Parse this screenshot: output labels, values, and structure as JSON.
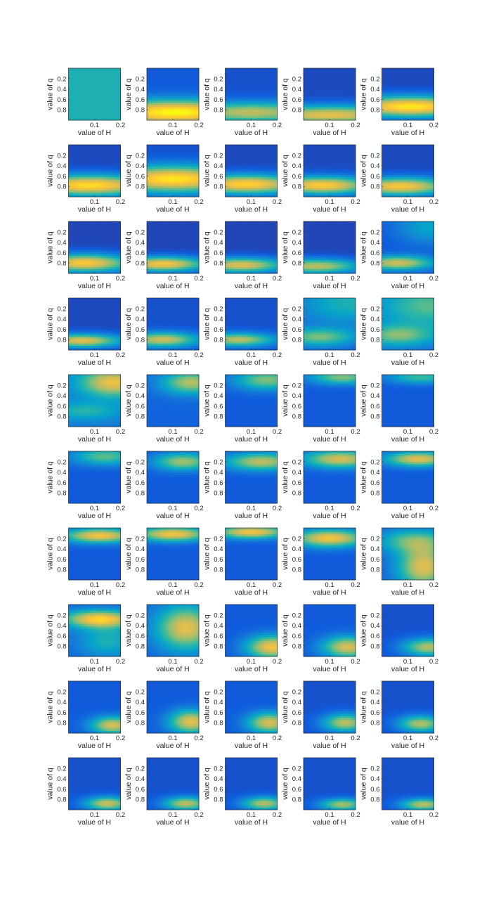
{
  "chart_data": {
    "type": "heatmap",
    "rows": 10,
    "cols": 5,
    "xlabel": "value of H",
    "ylabel": "value of q",
    "x_ticks": [
      "0.1",
      "0.2"
    ],
    "x_tick_values": [
      0.1,
      0.2
    ],
    "xlim": [
      0,
      0.2
    ],
    "y_ticks": [
      "0.2",
      "0.4",
      "0.6",
      "0.8"
    ],
    "y_tick_values": [
      0.2,
      0.4,
      0.6,
      0.8
    ],
    "ylim": [
      0,
      1
    ],
    "y_reversed": true,
    "colormap": [
      "#352a87",
      "#0f5cdd",
      "#1481d6",
      "#06a4ca",
      "#2eb7a4",
      "#87bf77",
      "#d1bb59",
      "#fec832",
      "#f9fb0e"
    ],
    "panels": [
      {
        "base": 0.45,
        "blobs": []
      },
      {
        "base": 0.12,
        "blobs": [
          {
            "x": 0.11,
            "y": 0.85,
            "sx": 0.22,
            "sy": 0.17,
            "a": 0.88
          }
        ]
      },
      {
        "base": 0.1,
        "blobs": [
          {
            "x": 0.1,
            "y": 0.85,
            "sx": 0.22,
            "sy": 0.14,
            "a": 0.62
          }
        ]
      },
      {
        "base": 0.08,
        "blobs": [
          {
            "x": 0.1,
            "y": 0.9,
            "sx": 0.22,
            "sy": 0.13,
            "a": 0.72
          }
        ]
      },
      {
        "base": 0.08,
        "blobs": [
          {
            "x": 0.11,
            "y": 0.74,
            "sx": 0.18,
            "sy": 0.14,
            "a": 0.88
          }
        ]
      },
      {
        "base": 0.08,
        "blobs": [
          {
            "x": 0.08,
            "y": 0.78,
            "sx": 0.18,
            "sy": 0.14,
            "a": 0.85
          }
        ]
      },
      {
        "base": 0.1,
        "blobs": [
          {
            "x": 0.1,
            "y": 0.66,
            "sx": 0.2,
            "sy": 0.18,
            "a": 0.85
          }
        ]
      },
      {
        "base": 0.08,
        "blobs": [
          {
            "x": 0.08,
            "y": 0.76,
            "sx": 0.16,
            "sy": 0.13,
            "a": 0.82
          }
        ]
      },
      {
        "base": 0.08,
        "blobs": [
          {
            "x": 0.07,
            "y": 0.78,
            "sx": 0.14,
            "sy": 0.12,
            "a": 0.8
          }
        ]
      },
      {
        "base": 0.08,
        "blobs": [
          {
            "x": 0.07,
            "y": 0.8,
            "sx": 0.14,
            "sy": 0.12,
            "a": 0.78
          }
        ]
      },
      {
        "base": 0.07,
        "blobs": [
          {
            "x": 0.06,
            "y": 0.8,
            "sx": 0.13,
            "sy": 0.12,
            "a": 0.8
          }
        ]
      },
      {
        "base": 0.07,
        "blobs": [
          {
            "x": 0.06,
            "y": 0.82,
            "sx": 0.12,
            "sy": 0.1,
            "a": 0.78
          }
        ]
      },
      {
        "base": 0.07,
        "blobs": [
          {
            "x": 0.06,
            "y": 0.84,
            "sx": 0.12,
            "sy": 0.1,
            "a": 0.72
          }
        ]
      },
      {
        "base": 0.07,
        "blobs": [
          {
            "x": 0.05,
            "y": 0.86,
            "sx": 0.12,
            "sy": 0.1,
            "a": 0.65
          }
        ]
      },
      {
        "base": 0.1,
        "blobs": [
          {
            "x": 0.06,
            "y": 0.8,
            "sx": 0.1,
            "sy": 0.1,
            "a": 0.65
          },
          {
            "x": 0.19,
            "y": 0.1,
            "sx": 0.1,
            "sy": 0.25,
            "a": 0.28
          }
        ]
      },
      {
        "base": 0.08,
        "blobs": [
          {
            "x": 0.05,
            "y": 0.82,
            "sx": 0.11,
            "sy": 0.09,
            "a": 0.72
          }
        ]
      },
      {
        "base": 0.1,
        "blobs": [
          {
            "x": 0.06,
            "y": 0.8,
            "sx": 0.1,
            "sy": 0.1,
            "a": 0.65
          }
        ]
      },
      {
        "base": 0.1,
        "blobs": [
          {
            "x": 0.05,
            "y": 0.8,
            "sx": 0.1,
            "sy": 0.09,
            "a": 0.62
          }
        ]
      },
      {
        "base": 0.15,
        "blobs": [
          {
            "x": 0.06,
            "y": 0.75,
            "sx": 0.1,
            "sy": 0.12,
            "a": 0.45
          },
          {
            "x": 0.18,
            "y": 0.1,
            "sx": 0.14,
            "sy": 0.28,
            "a": 0.3
          }
        ]
      },
      {
        "base": 0.18,
        "blobs": [
          {
            "x": 0.06,
            "y": 0.72,
            "sx": 0.1,
            "sy": 0.14,
            "a": 0.42
          },
          {
            "x": 0.18,
            "y": 0.15,
            "sx": 0.14,
            "sy": 0.3,
            "a": 0.38
          }
        ]
      },
      {
        "base": 0.22,
        "blobs": [
          {
            "x": 0.17,
            "y": 0.15,
            "sx": 0.09,
            "sy": 0.2,
            "a": 0.6
          },
          {
            "x": 0.06,
            "y": 0.7,
            "sx": 0.1,
            "sy": 0.12,
            "a": 0.25
          }
        ]
      },
      {
        "base": 0.15,
        "blobs": [
          {
            "x": 0.17,
            "y": 0.15,
            "sx": 0.08,
            "sy": 0.16,
            "a": 0.55
          }
        ]
      },
      {
        "base": 0.12,
        "blobs": [
          {
            "x": 0.16,
            "y": 0.1,
            "sx": 0.09,
            "sy": 0.14,
            "a": 0.5
          }
        ]
      },
      {
        "base": 0.12,
        "blobs": [
          {
            "x": 0.15,
            "y": 0.05,
            "sx": 0.09,
            "sy": 0.1,
            "a": 0.5
          }
        ]
      },
      {
        "base": 0.12,
        "blobs": [
          {
            "x": 0.15,
            "y": 0.05,
            "sx": 0.09,
            "sy": 0.09,
            "a": 0.4
          }
        ]
      },
      {
        "base": 0.12,
        "blobs": [
          {
            "x": 0.14,
            "y": 0.1,
            "sx": 0.09,
            "sy": 0.12,
            "a": 0.45
          }
        ]
      },
      {
        "base": 0.12,
        "blobs": [
          {
            "x": 0.14,
            "y": 0.2,
            "sx": 0.08,
            "sy": 0.12,
            "a": 0.55
          }
        ]
      },
      {
        "base": 0.12,
        "blobs": [
          {
            "x": 0.14,
            "y": 0.2,
            "sx": 0.1,
            "sy": 0.12,
            "a": 0.6
          }
        ]
      },
      {
        "base": 0.12,
        "blobs": [
          {
            "x": 0.14,
            "y": 0.15,
            "sx": 0.1,
            "sy": 0.12,
            "a": 0.65
          }
        ]
      },
      {
        "base": 0.12,
        "blobs": [
          {
            "x": 0.14,
            "y": 0.15,
            "sx": 0.09,
            "sy": 0.1,
            "a": 0.68
          }
        ]
      },
      {
        "base": 0.12,
        "blobs": [
          {
            "x": 0.12,
            "y": 0.15,
            "sx": 0.1,
            "sy": 0.1,
            "a": 0.72
          }
        ]
      },
      {
        "base": 0.12,
        "blobs": [
          {
            "x": 0.1,
            "y": 0.12,
            "sx": 0.1,
            "sy": 0.1,
            "a": 0.72
          }
        ]
      },
      {
        "base": 0.12,
        "blobs": [
          {
            "x": 0.1,
            "y": 0.08,
            "sx": 0.1,
            "sy": 0.09,
            "a": 0.72
          }
        ]
      },
      {
        "base": 0.12,
        "blobs": [
          {
            "x": 0.1,
            "y": 0.2,
            "sx": 0.1,
            "sy": 0.12,
            "a": 0.72
          }
        ]
      },
      {
        "base": 0.14,
        "blobs": [
          {
            "x": 0.16,
            "y": 0.75,
            "sx": 0.07,
            "sy": 0.3,
            "a": 0.65
          },
          {
            "x": 0.12,
            "y": 0.25,
            "sx": 0.1,
            "sy": 0.16,
            "a": 0.4
          }
        ]
      },
      {
        "base": 0.15,
        "blobs": [
          {
            "x": 0.12,
            "y": 0.28,
            "sx": 0.1,
            "sy": 0.12,
            "a": 0.72
          },
          {
            "x": 0.15,
            "y": 0.7,
            "sx": 0.08,
            "sy": 0.22,
            "a": 0.3
          }
        ]
      },
      {
        "base": 0.15,
        "blobs": [
          {
            "x": 0.15,
            "y": 0.45,
            "sx": 0.08,
            "sy": 0.3,
            "a": 0.65
          }
        ]
      },
      {
        "base": 0.12,
        "blobs": [
          {
            "x": 0.18,
            "y": 0.82,
            "sx": 0.07,
            "sy": 0.16,
            "a": 0.72
          }
        ]
      },
      {
        "base": 0.12,
        "blobs": [
          {
            "x": 0.17,
            "y": 0.82,
            "sx": 0.07,
            "sy": 0.15,
            "a": 0.65
          }
        ]
      },
      {
        "base": 0.1,
        "blobs": [
          {
            "x": 0.18,
            "y": 0.82,
            "sx": 0.07,
            "sy": 0.12,
            "a": 0.6
          }
        ]
      },
      {
        "base": 0.12,
        "blobs": [
          {
            "x": 0.17,
            "y": 0.85,
            "sx": 0.06,
            "sy": 0.12,
            "a": 0.65
          }
        ]
      },
      {
        "base": 0.12,
        "blobs": [
          {
            "x": 0.17,
            "y": 0.78,
            "sx": 0.06,
            "sy": 0.16,
            "a": 0.68
          }
        ]
      },
      {
        "base": 0.12,
        "blobs": [
          {
            "x": 0.17,
            "y": 0.8,
            "sx": 0.06,
            "sy": 0.14,
            "a": 0.65
          }
        ]
      },
      {
        "base": 0.1,
        "blobs": [
          {
            "x": 0.16,
            "y": 0.8,
            "sx": 0.06,
            "sy": 0.12,
            "a": 0.62
          }
        ]
      },
      {
        "base": 0.1,
        "blobs": [
          {
            "x": 0.15,
            "y": 0.82,
            "sx": 0.06,
            "sy": 0.11,
            "a": 0.6
          }
        ]
      },
      {
        "base": 0.1,
        "blobs": [
          {
            "x": 0.15,
            "y": 0.88,
            "sx": 0.06,
            "sy": 0.09,
            "a": 0.65
          }
        ]
      },
      {
        "base": 0.1,
        "blobs": [
          {
            "x": 0.15,
            "y": 0.88,
            "sx": 0.06,
            "sy": 0.09,
            "a": 0.62
          }
        ]
      },
      {
        "base": 0.1,
        "blobs": [
          {
            "x": 0.15,
            "y": 0.88,
            "sx": 0.06,
            "sy": 0.09,
            "a": 0.6
          }
        ]
      },
      {
        "base": 0.1,
        "blobs": [
          {
            "x": 0.15,
            "y": 0.9,
            "sx": 0.06,
            "sy": 0.08,
            "a": 0.58
          }
        ]
      },
      {
        "base": 0.1,
        "blobs": [
          {
            "x": 0.16,
            "y": 0.9,
            "sx": 0.06,
            "sy": 0.08,
            "a": 0.62
          }
        ]
      }
    ]
  }
}
